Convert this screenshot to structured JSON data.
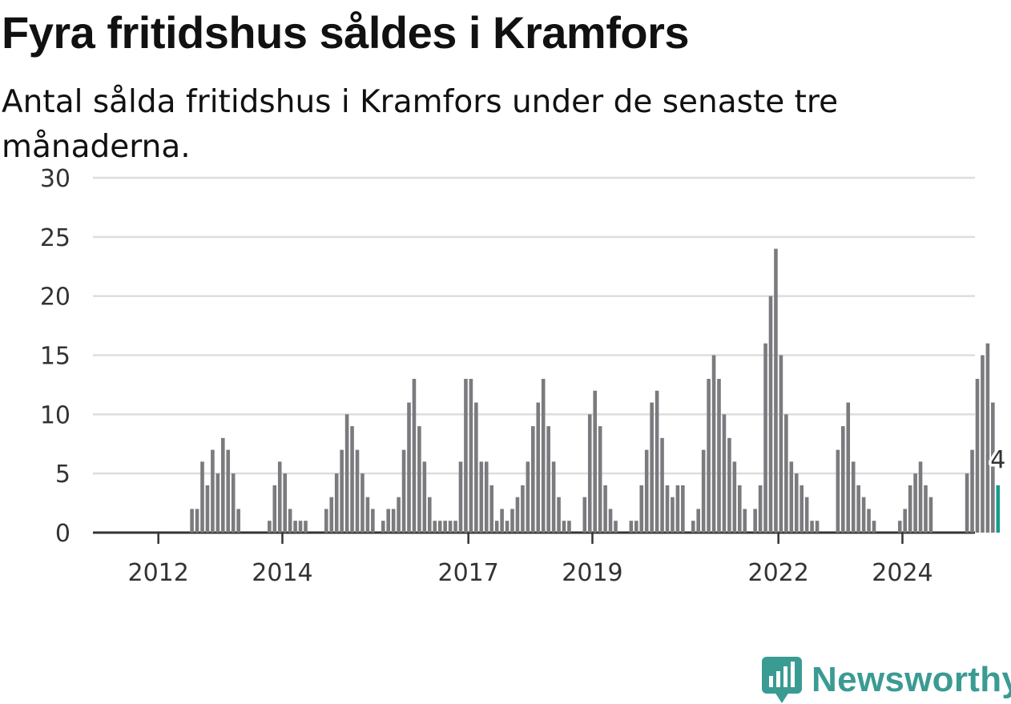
{
  "title": "Fyra fritidshus såldes i Kramfors",
  "subtitle": "Antal sålda fritidshus i Kramfors under de senaste tre månaderna.",
  "brand": {
    "name": "Newsworthy",
    "color": "#3a9b93",
    "icon": "newsworthy-logo-icon"
  },
  "colors": {
    "bar": "#7b7a7e",
    "highlight": "#1a9a8f",
    "grid": "#dddddd",
    "axis": "#333333"
  },
  "chart_data": {
    "type": "bar",
    "start": "2011-01",
    "frequency": "monthly",
    "ylim": [
      0,
      30
    ],
    "yticks": [
      0,
      5,
      10,
      15,
      20,
      25,
      30
    ],
    "xticks": [
      {
        "label": "2012",
        "month_index": 12
      },
      {
        "label": "2014",
        "month_index": 36
      },
      {
        "label": "2017",
        "month_index": 72
      },
      {
        "label": "2019",
        "month_index": 96
      },
      {
        "label": "2022",
        "month_index": 132
      },
      {
        "label": "2024",
        "month_index": 156
      }
    ],
    "values": [
      0,
      0,
      0,
      0,
      0,
      0,
      0,
      0,
      0,
      0,
      0,
      0,
      0,
      0,
      0,
      0,
      0,
      0,
      2,
      2,
      6,
      4,
      7,
      5,
      8,
      7,
      5,
      2,
      0,
      0,
      0,
      0,
      0,
      1,
      4,
      6,
      5,
      2,
      1,
      1,
      1,
      0,
      0,
      0,
      2,
      3,
      5,
      7,
      10,
      9,
      7,
      5,
      3,
      2,
      0,
      1,
      2,
      2,
      3,
      7,
      11,
      13,
      9,
      6,
      3,
      1,
      1,
      1,
      1,
      1,
      6,
      13,
      13,
      11,
      6,
      6,
      4,
      1,
      2,
      1,
      2,
      3,
      4,
      6,
      9,
      11,
      13,
      9,
      6,
      3,
      1,
      1,
      0,
      0,
      3,
      10,
      12,
      9,
      4,
      2,
      1,
      0,
      0,
      1,
      1,
      4,
      7,
      11,
      12,
      8,
      4,
      3,
      4,
      4,
      0,
      1,
      2,
      7,
      13,
      15,
      13,
      10,
      8,
      6,
      4,
      2,
      0,
      2,
      4,
      16,
      20,
      24,
      15,
      10,
      6,
      5,
      4,
      3,
      1,
      1,
      0,
      0,
      0,
      7,
      9,
      11,
      6,
      4,
      3,
      2,
      1,
      0,
      0,
      0,
      0,
      1,
      2,
      4,
      5,
      6,
      4,
      3,
      0,
      0,
      0,
      0,
      0,
      0,
      5,
      7,
      13,
      15,
      16,
      11,
      4
    ],
    "highlight_label": "4"
  }
}
